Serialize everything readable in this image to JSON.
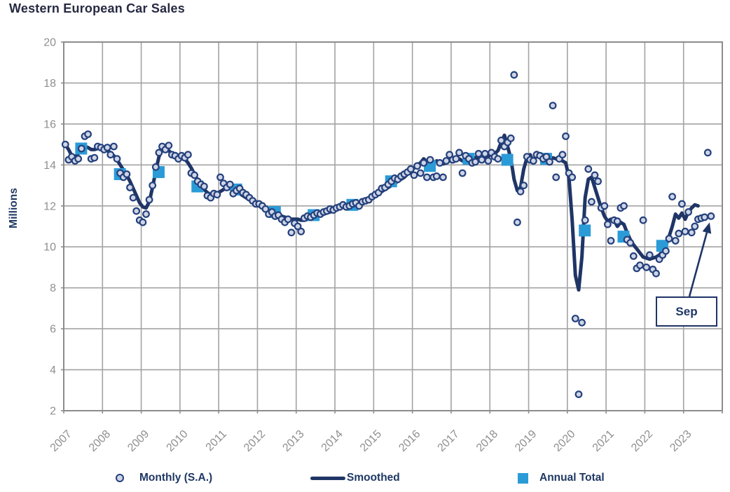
{
  "title": "Western European Car Sales",
  "y_axis": {
    "label": "Millions",
    "ticks": [
      20,
      18,
      16,
      14,
      12,
      10,
      8,
      6,
      4,
      2
    ],
    "min": 2,
    "max": 20
  },
  "x_axis": {
    "tick_labels": [
      "2007",
      "2008",
      "2009",
      "2010",
      "2011",
      "2012",
      "2013",
      "2014",
      "2015",
      "2016",
      "2017",
      "2018",
      "2019",
      "2020",
      "2021",
      "2022",
      "2023"
    ],
    "min": 2007,
    "max": 2024
  },
  "legend": [
    {
      "label": "Monthly (S.A.)",
      "marker": "circle-icon"
    },
    {
      "label": "Smoothed",
      "marker": "line-icon"
    },
    {
      "label": "Annual Total",
      "marker": "square-icon"
    }
  ],
  "annotation": {
    "label": "Sep",
    "points_to": "last monthly point, Sep 2023 = 11.5"
  },
  "colors": {
    "navy": "#1f3566",
    "legend_text": "#1f3864",
    "monthly_stroke": "#24407c",
    "monthly_fill": "#cfd5e6",
    "annual_square": "#2b9bd7",
    "grid": "#a3a3a3",
    "border": "#8c8c8c",
    "axis_text": "#8f8f8f",
    "title_text": "#262a42"
  },
  "chart_data": {
    "type": "line",
    "title": "Western European Car Sales",
    "ylabel": "Millions",
    "ylim": [
      2,
      20
    ],
    "xlim": [
      2007,
      2024
    ],
    "grid": true,
    "legend_position": "bottom",
    "units": "millions of vehicles, SAAR",
    "series": [
      {
        "name": "Monthly (S.A.)",
        "type": "scatter",
        "start": "2007-01",
        "end": "2023-09",
        "frequency": "monthly",
        "values": [
          15.0,
          14.25,
          14.4,
          14.2,
          14.3,
          14.8,
          15.4,
          15.5,
          14.3,
          14.35,
          14.9,
          14.85,
          14.75,
          14.85,
          14.5,
          14.9,
          14.3,
          13.6,
          13.4,
          13.55,
          12.9,
          12.4,
          11.75,
          11.3,
          11.2,
          11.6,
          12.3,
          13.0,
          13.9,
          14.6,
          14.9,
          14.75,
          14.95,
          14.5,
          14.45,
          14.3,
          14.45,
          14.35,
          14.5,
          13.6,
          13.5,
          13.2,
          13.05,
          12.95,
          12.5,
          12.4,
          12.6,
          12.55,
          13.4,
          13.1,
          12.9,
          13.05,
          12.6,
          12.75,
          12.85,
          12.65,
          12.55,
          12.4,
          12.25,
          12.1,
          12.1,
          12.0,
          11.85,
          11.6,
          11.7,
          11.5,
          11.55,
          11.35,
          11.2,
          11.35,
          10.7,
          11.15,
          11.0,
          10.75,
          11.4,
          11.5,
          11.45,
          11.55,
          11.65,
          11.6,
          11.7,
          11.75,
          11.85,
          11.8,
          11.9,
          11.95,
          12.05,
          11.95,
          12.0,
          12.1,
          12.15,
          12.0,
          12.2,
          12.25,
          12.3,
          12.45,
          12.55,
          12.65,
          12.85,
          12.9,
          13.05,
          13.2,
          13.35,
          13.3,
          13.45,
          13.55,
          13.65,
          13.8,
          13.5,
          13.95,
          13.6,
          14.1,
          13.4,
          14.25,
          13.4,
          13.45,
          14.1,
          13.4,
          14.2,
          14.5,
          14.25,
          14.3,
          14.6,
          13.6,
          14.45,
          14.3,
          14.1,
          14.15,
          14.55,
          14.25,
          14.55,
          14.2,
          14.6,
          14.4,
          14.3,
          15.2,
          14.9,
          15.1,
          15.3,
          18.4,
          11.2,
          12.7,
          13.0,
          14.4,
          14.25,
          14.2,
          14.5,
          14.45,
          14.3,
          14.4,
          14.15,
          16.9,
          13.4,
          14.3,
          14.5,
          15.4,
          13.6,
          13.4,
          6.5,
          2.8,
          6.3,
          11.3,
          13.8,
          12.2,
          13.5,
          13.2,
          11.9,
          12.0,
          11.1,
          10.3,
          11.3,
          11.25,
          11.9,
          12.0,
          10.35,
          10.2,
          9.55,
          8.95,
          9.1,
          11.3,
          9.0,
          9.6,
          8.9,
          8.7,
          9.4,
          9.6,
          9.8,
          10.4,
          12.45,
          10.3,
          10.65,
          12.1,
          10.75,
          11.7,
          10.7,
          11.0,
          11.35,
          11.4,
          11.45,
          14.6,
          11.5
        ]
      },
      {
        "name": "Smoothed",
        "type": "line",
        "start": "2007-01",
        "end": "2023-05",
        "frequency": "monthly",
        "values": [
          15.0,
          14.75,
          14.45,
          14.4,
          14.55,
          14.75,
          14.9,
          14.85,
          14.75,
          14.75,
          14.8,
          14.85,
          14.8,
          14.7,
          14.6,
          14.45,
          14.25,
          14.0,
          13.75,
          13.5,
          13.2,
          12.85,
          12.5,
          12.15,
          11.95,
          11.9,
          12.2,
          12.9,
          13.7,
          14.4,
          14.75,
          14.85,
          14.7,
          14.55,
          14.5,
          14.45,
          14.4,
          14.3,
          14.1,
          13.85,
          13.55,
          13.25,
          13.0,
          12.8,
          12.65,
          12.55,
          12.55,
          12.6,
          12.7,
          12.8,
          12.9,
          12.85,
          12.75,
          12.7,
          12.6,
          12.5,
          12.4,
          12.3,
          12.2,
          12.1,
          12.0,
          11.95,
          11.9,
          11.8,
          11.75,
          11.7,
          11.6,
          11.5,
          11.45,
          11.4,
          11.35,
          11.35,
          11.35,
          11.3,
          11.3,
          11.35,
          11.4,
          11.45,
          11.5,
          11.55,
          11.6,
          11.65,
          11.7,
          11.75,
          11.85,
          11.9,
          11.95,
          12.0,
          12.0,
          12.05,
          12.1,
          12.1,
          12.15,
          12.2,
          12.3,
          12.4,
          12.5,
          12.6,
          12.7,
          12.8,
          12.9,
          13.0,
          13.1,
          13.2,
          13.3,
          13.4,
          13.55,
          13.7,
          13.85,
          14.0,
          14.1,
          14.3,
          14.15,
          14.05,
          14.1,
          14.2,
          14.15,
          14.05,
          14.1,
          14.2,
          14.3,
          14.35,
          14.3,
          14.2,
          14.25,
          14.35,
          14.4,
          14.35,
          14.3,
          14.35,
          14.4,
          14.45,
          14.5,
          14.55,
          14.7,
          15.1,
          15.45,
          14.9,
          14.3,
          13.3,
          12.75,
          12.9,
          13.8,
          14.35,
          14.5,
          14.1,
          14.6,
          14.35,
          14.3,
          14.3,
          14.3,
          14.35,
          14.3,
          14.25,
          14.2,
          14.1,
          13.4,
          11.3,
          8.6,
          7.9,
          9.5,
          12.4,
          13.3,
          13.4,
          12.9,
          12.4,
          11.9,
          11.5,
          11.25,
          11.35,
          11.3,
          11.0,
          11.2,
          11.1,
          10.7,
          10.35,
          10.1,
          9.9,
          9.7,
          9.5,
          9.45,
          9.4,
          9.45,
          9.5,
          9.6,
          9.8,
          10.05,
          10.5,
          11.0,
          11.6,
          11.4,
          11.65,
          11.35,
          11.7,
          11.9,
          12.05,
          12.0
        ]
      },
      {
        "name": "Annual Total",
        "type": "scatter",
        "marker": "square",
        "years": [
          2007,
          2008,
          2009,
          2010,
          2011,
          2012,
          2013,
          2014,
          2015,
          2016,
          2017,
          2018,
          2019,
          2020,
          2021,
          2022
        ],
        "values": [
          14.8,
          13.55,
          13.65,
          12.95,
          12.8,
          11.7,
          11.55,
          12.05,
          13.2,
          13.95,
          14.3,
          14.25,
          14.3,
          10.8,
          10.5,
          10.05
        ]
      }
    ]
  }
}
